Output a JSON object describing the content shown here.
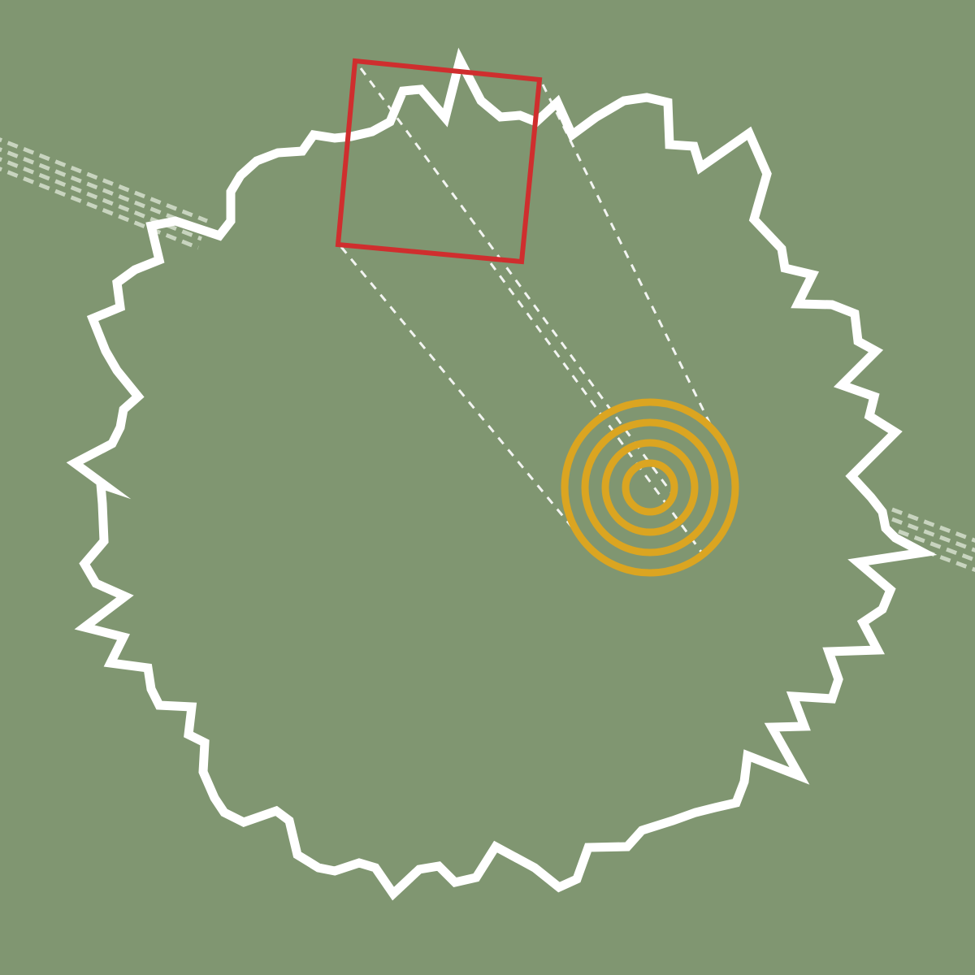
{
  "colors": {
    "background": "#809671",
    "boundary": "#ffffff",
    "viewport_box": "#cf2e2e",
    "target_rings": "#dba521",
    "road_dashes": "#c8d4bf",
    "connector_lines": "#ffffff"
  },
  "map": {
    "features": [
      {
        "name": "region-boundary",
        "kind": "jagged closed outline"
      },
      {
        "name": "road",
        "kind": "dashed multi-lane line"
      },
      {
        "name": "viewport-box",
        "kind": "rotated rectangle"
      },
      {
        "name": "target-marker",
        "kind": "concentric rings"
      },
      {
        "name": "connector-lines",
        "kind": "dashed lines"
      }
    ],
    "target_ring_count": 4
  }
}
